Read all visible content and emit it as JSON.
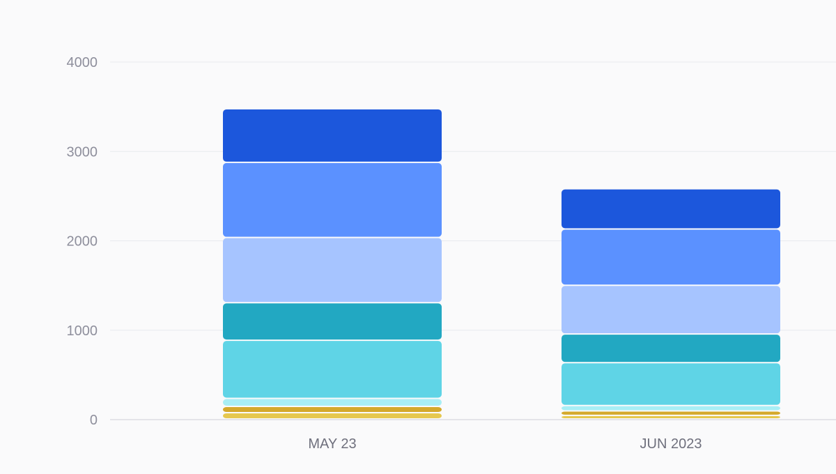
{
  "chart_data": {
    "type": "bar",
    "stacked": true,
    "categories": [
      "MAY 23",
      "JUN 2023"
    ],
    "ylim": [
      0,
      4000
    ],
    "yticks": [
      0,
      1000,
      2000,
      3000,
      4000
    ],
    "grid": true,
    "series": [
      {
        "values": [
          70,
          40
        ],
        "color": "#e6c84f"
      },
      {
        "values": [
          70,
          50
        ],
        "color": "#d4a92c"
      },
      {
        "values": [
          90,
          60
        ],
        "color": "#a8eef5"
      },
      {
        "values": [
          650,
          480
        ],
        "color": "#5fd4e6"
      },
      {
        "values": [
          420,
          320
        ],
        "color": "#22a8c2"
      },
      {
        "values": [
          730,
          545
        ],
        "color": "#a6c4ff"
      },
      {
        "values": [
          840,
          630
        ],
        "color": "#5b91ff"
      },
      {
        "values": [
          600,
          450
        ],
        "color": "#1c57dc"
      }
    ]
  }
}
